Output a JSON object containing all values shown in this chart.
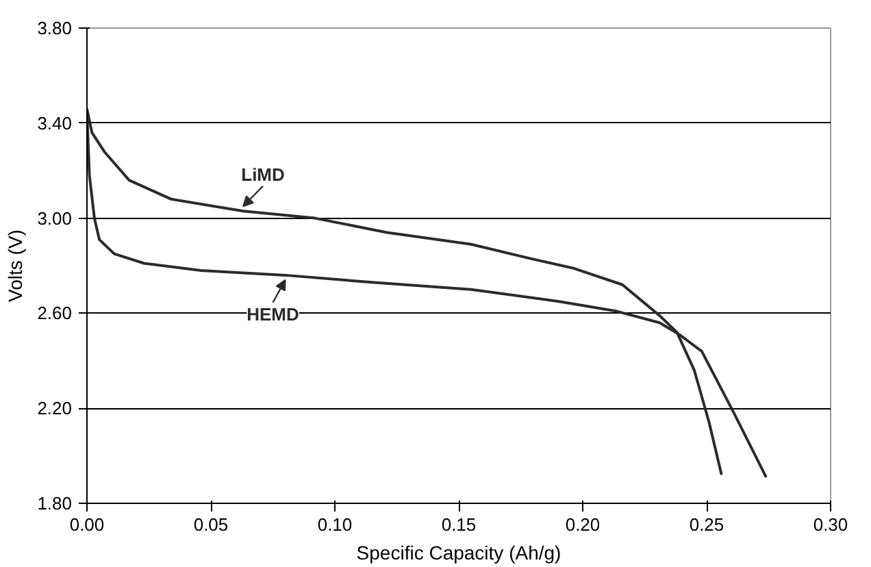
{
  "chart_data": {
    "type": "line",
    "xlabel": "Specific Capacity (Ah/g)",
    "ylabel": "Volts (V)",
    "xlim": [
      0,
      0.3
    ],
    "ylim": [
      1.8,
      3.8
    ],
    "xticks": [
      {
        "value": 0,
        "label": "0.00"
      },
      {
        "value": 0.05,
        "label": "0.05"
      },
      {
        "value": 0.1,
        "label": "0.10"
      },
      {
        "value": 0.15,
        "label": "0.15"
      },
      {
        "value": 0.2,
        "label": "0.20"
      },
      {
        "value": 0.25,
        "label": "0.25"
      },
      {
        "value": 0.3,
        "label": "0.30"
      }
    ],
    "yticks": [
      {
        "value": 1.8,
        "label": "1.80"
      },
      {
        "value": 2.2,
        "label": "2.20"
      },
      {
        "value": 2.6,
        "label": "2.60"
      },
      {
        "value": 3.0,
        "label": "3.00"
      },
      {
        "value": 3.4,
        "label": "3.40"
      },
      {
        "value": 3.8,
        "label": "3.80"
      }
    ],
    "grid": "y",
    "marker": "none",
    "line_style": "solid",
    "series": [
      {
        "name": "LiMD",
        "color": "#2b2b2b",
        "x": [
          0,
          0.002,
          0.007,
          0.017,
          0.034,
          0.063,
          0.092,
          0.121,
          0.155,
          0.179,
          0.196,
          0.216,
          0.231,
          0.238,
          0.245,
          0.251,
          0.256
        ],
        "values": [
          3.46,
          3.36,
          3.28,
          3.16,
          3.08,
          3.03,
          3.0,
          2.94,
          2.89,
          2.83,
          2.79,
          2.72,
          2.59,
          2.52,
          2.36,
          2.14,
          1.92
        ]
      },
      {
        "name": "HEMD",
        "color": "#2b2b2b",
        "x": [
          0,
          0.001,
          0.003,
          0.005,
          0.011,
          0.023,
          0.046,
          0.08,
          0.115,
          0.155,
          0.19,
          0.213,
          0.231,
          0.239,
          0.248,
          0.261,
          0.274
        ],
        "values": [
          3.44,
          3.18,
          3.0,
          2.91,
          2.85,
          2.81,
          2.78,
          2.76,
          2.73,
          2.7,
          2.65,
          2.61,
          2.56,
          2.51,
          2.44,
          2.18,
          1.91
        ]
      }
    ]
  }
}
